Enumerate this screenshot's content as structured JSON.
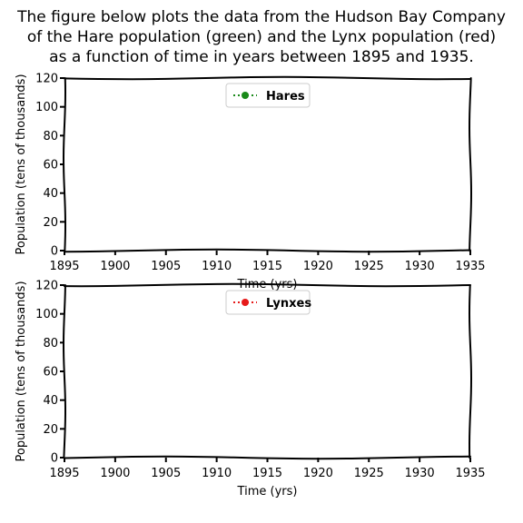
{
  "title_lines": [
    "The figure below plots the data from the Hudson Bay Company",
    "of the Hare population (green) and the Lynx population (red)",
    "as a function of time in years between 1895 and 1935."
  ],
  "colors": {
    "hares": "#1a8a1a",
    "lynxes": "#e61a1a",
    "axis": "#000000"
  },
  "chart_data": [
    {
      "type": "line",
      "xlabel": "Time (yrs)",
      "ylabel": "Population (tens of thousands)",
      "xlim": [
        1895,
        1935
      ],
      "ylim": [
        0,
        120
      ],
      "xticks": [
        1895,
        1900,
        1905,
        1910,
        1915,
        1920,
        1925,
        1930,
        1935
      ],
      "yticks": [
        0,
        20,
        40,
        60,
        80,
        100,
        120
      ],
      "legend_position": "top-center",
      "grid": false,
      "series": [
        {
          "name": "Hares",
          "color": "#1a8a1a",
          "x": [],
          "y": []
        }
      ]
    },
    {
      "type": "line",
      "xlabel": "Time (yrs)",
      "ylabel": "Population (tens of thousands)",
      "xlim": [
        1895,
        1935
      ],
      "ylim": [
        0,
        120
      ],
      "xticks": [
        1895,
        1900,
        1905,
        1910,
        1915,
        1920,
        1925,
        1930,
        1935
      ],
      "yticks": [
        0,
        20,
        40,
        60,
        80,
        100,
        120
      ],
      "legend_position": "top-center",
      "grid": false,
      "series": [
        {
          "name": "Lynxes",
          "color": "#e61a1a",
          "x": [],
          "y": []
        }
      ]
    }
  ]
}
